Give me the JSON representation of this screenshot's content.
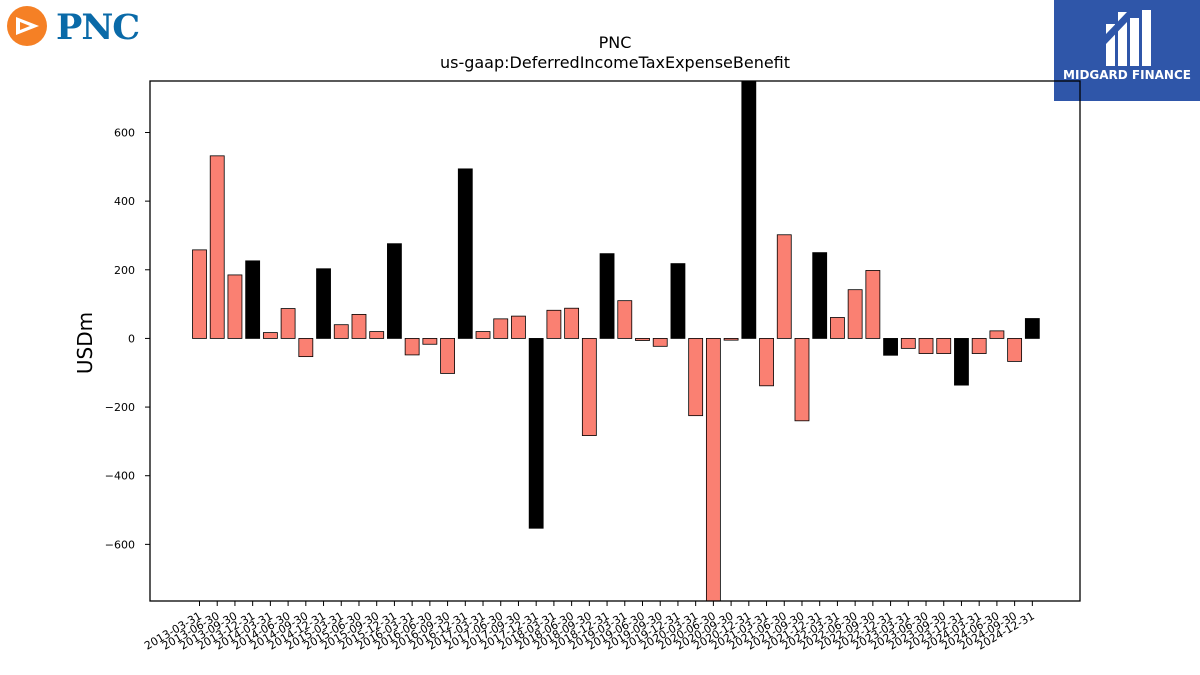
{
  "brand": {
    "left_logo_text": "PNC",
    "right_logo_text": "MIDGARD FINANCE",
    "pnc_orange": "#f58025",
    "pnc_blue": "#0a6aa8",
    "midgard_blue": "#2f56a9",
    "pnc_icon": "pnc-triangle-mark",
    "midgard_icon": "midgard-m-mark"
  },
  "chart_data": {
    "type": "bar",
    "title": "PNC",
    "subtitle": "us-gaap:DeferredIncomeTaxExpenseBenefit",
    "xlabel": "",
    "ylabel": "USDm",
    "ylim": [
      -765,
      750
    ],
    "yticks": [
      -600,
      -400,
      -200,
      0,
      200,
      400,
      600
    ],
    "grid": false,
    "colors": {
      "quarter": "#fa8072",
      "year_end": "#000000"
    },
    "categories": [
      "2013-03-31",
      "2013-06-30",
      "2013-09-30",
      "2013-12-31",
      "2014-03-31",
      "2014-06-30",
      "2014-09-30",
      "2014-12-31",
      "2015-03-31",
      "2015-06-30",
      "2015-09-30",
      "2015-12-31",
      "2016-03-31",
      "2016-06-30",
      "2016-09-30",
      "2016-12-31",
      "2017-03-31",
      "2017-06-30",
      "2017-09-30",
      "2017-12-31",
      "2018-03-31",
      "2018-06-30",
      "2018-09-30",
      "2018-12-31",
      "2019-03-31",
      "2019-06-30",
      "2019-09-30",
      "2019-12-31",
      "2020-03-31",
      "2020-06-30",
      "2020-09-30",
      "2020-12-31",
      "2021-03-31",
      "2021-06-30",
      "2021-09-30",
      "2021-12-31",
      "2022-03-31",
      "2022-06-30",
      "2022-09-30",
      "2022-12-31",
      "2023-03-31",
      "2023-06-30",
      "2023-09-30",
      "2023-12-31",
      "2024-03-31",
      "2024-06-30",
      "2024-09-30",
      "2024-12-31"
    ],
    "values": [
      258,
      532,
      185,
      226,
      17,
      87,
      -53,
      203,
      40,
      70,
      20,
      276,
      -48,
      -17,
      -102,
      494,
      20,
      57,
      65,
      -553,
      82,
      88,
      -283,
      247,
      110,
      -6,
      -23,
      218,
      -225,
      -780,
      -5,
      780,
      -138,
      302,
      -240,
      250,
      61,
      142,
      198,
      -49,
      -29,
      -44,
      -44,
      -136,
      -44,
      22,
      -67,
      58
    ],
    "year_end_flags": [
      0,
      0,
      0,
      1,
      0,
      0,
      0,
      1,
      0,
      0,
      0,
      1,
      0,
      0,
      0,
      1,
      0,
      0,
      0,
      1,
      0,
      0,
      0,
      1,
      0,
      0,
      0,
      1,
      0,
      0,
      0,
      1,
      0,
      0,
      0,
      1,
      0,
      0,
      0,
      1,
      0,
      0,
      0,
      1,
      0,
      0,
      0,
      1
    ]
  }
}
